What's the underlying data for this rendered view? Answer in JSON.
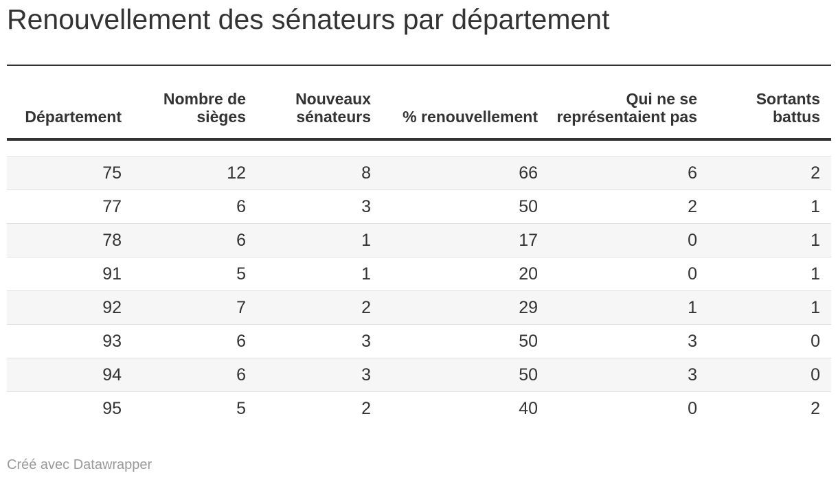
{
  "chart_data": {
    "type": "table",
    "title": "Renouvellement des sénateurs par département",
    "columns": [
      "Département",
      "Nombre de sièges",
      "Nouveaux sénateurs",
      "% renouvellement",
      "Qui ne se représentaient pas",
      "Sortants battus"
    ],
    "rows": [
      [
        "75",
        "12",
        "8",
        "66",
        "6",
        "2"
      ],
      [
        "77",
        "6",
        "3",
        "50",
        "2",
        "1"
      ],
      [
        "78",
        "6",
        "1",
        "17",
        "0",
        "1"
      ],
      [
        "91",
        "5",
        "1",
        "20",
        "0",
        "1"
      ],
      [
        "92",
        "7",
        "2",
        "29",
        "1",
        "1"
      ],
      [
        "93",
        "6",
        "3",
        "50",
        "3",
        "0"
      ],
      [
        "94",
        "6",
        "3",
        "50",
        "3",
        "0"
      ],
      [
        "95",
        "5",
        "2",
        "40",
        "0",
        "2"
      ]
    ]
  },
  "footer": {
    "credit": "Créé avec Datawrapper"
  }
}
